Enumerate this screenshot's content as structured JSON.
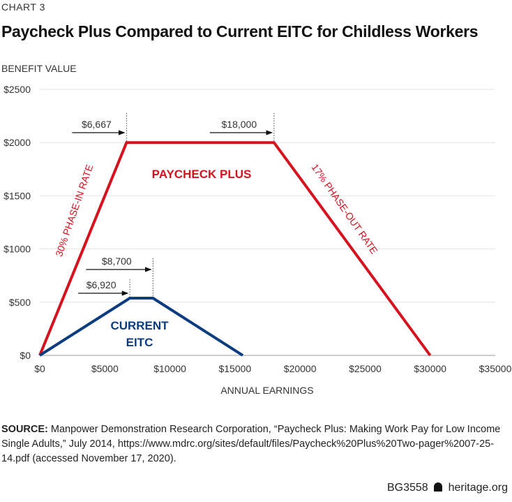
{
  "kicker": "CHART 3",
  "title": "Paycheck Plus Compared to Current EITC for Childless Workers",
  "chart_data": {
    "type": "line",
    "title": "Paycheck Plus Compared to Current EITC for Childless Workers",
    "xlabel": "ANNUAL EARNINGS",
    "ylabel": "BENEFIT VALUE",
    "xlim": [
      0,
      35000
    ],
    "ylim": [
      0,
      2500
    ],
    "x_ticks": [
      0,
      5000,
      10000,
      15000,
      20000,
      25000,
      30000,
      35000
    ],
    "x_tick_labels": [
      "$0",
      "$5000",
      "$10000",
      "$15000",
      "$20000",
      "$25000",
      "$30000",
      "$35000"
    ],
    "y_ticks": [
      0,
      500,
      1000,
      1500,
      2000,
      2500
    ],
    "y_tick_labels": [
      "$0",
      "$500",
      "$1000",
      "$1500",
      "$2000",
      "$2500"
    ],
    "grid": "horizontal",
    "series": [
      {
        "name": "PAYCHECK PLUS",
        "color": "#d7121f",
        "x": [
          0,
          6667,
          18000,
          30000
        ],
        "y": [
          0,
          2000,
          2000,
          0
        ]
      },
      {
        "name": "CURRENT EITC",
        "color": "#0b3c7f",
        "x": [
          0,
          6920,
          8700,
          15600
        ],
        "y": [
          0,
          538,
          538,
          0
        ]
      }
    ],
    "annotations": [
      {
        "text": "$6,667",
        "x": 6667,
        "y": 2000,
        "type": "arrow-marker"
      },
      {
        "text": "$18,000",
        "x": 18000,
        "y": 2000,
        "type": "arrow-marker"
      },
      {
        "text": "$6,920",
        "x": 6920,
        "y": 538,
        "type": "arrow-marker"
      },
      {
        "text": "$8,700",
        "x": 8700,
        "y": 538,
        "type": "arrow-marker"
      },
      {
        "text": "30% PHASE-IN RATE",
        "type": "slope-label"
      },
      {
        "text": "17% PHASE-OUT RATE",
        "type": "slope-label"
      }
    ]
  },
  "source": {
    "label": "SOURCE:",
    "text": " Manpower Demonstration Research Corporation, “Paycheck Plus: Making Work Pay for Low Income Single Adults,” July 2014, https://www.mdrc.org/sites/default/files/Paycheck%20Plus%20Two-pager%2007-25-14.pdf (accessed November 17, 2020)."
  },
  "footer": {
    "code": "BG3558",
    "icon": "liberty-bell-icon",
    "site": "heritage.org"
  }
}
